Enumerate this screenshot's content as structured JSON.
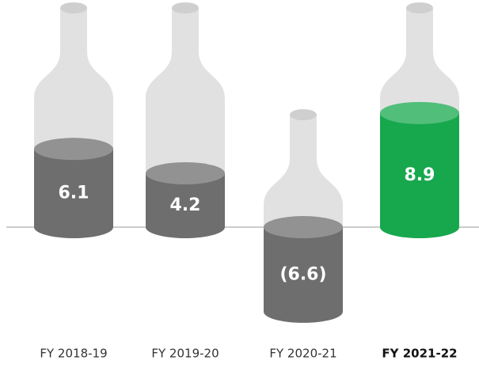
{
  "chart_data": {
    "type": "bottle-bar",
    "categories": [
      "FY 2018-19",
      "FY 2019-20",
      "FY 2020-21",
      "FY 2021-22"
    ],
    "values": [
      6.1,
      4.2,
      -6.6,
      8.9
    ],
    "value_labels": [
      "6.1",
      "4.2",
      "(6.6)",
      "8.9"
    ],
    "colors": [
      "#6e6e6e",
      "#6e6e6e",
      "#6e6e6e",
      "#17a84e"
    ]
  }
}
